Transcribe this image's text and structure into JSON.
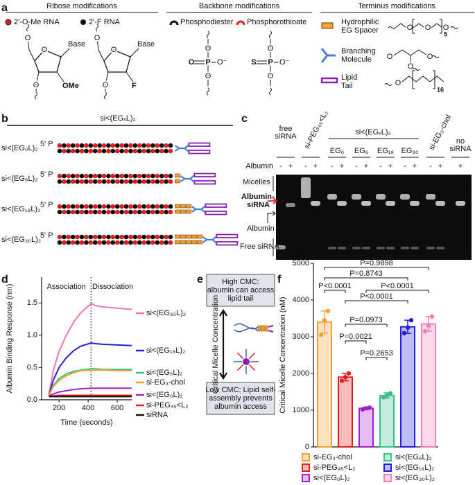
{
  "panel_a": {
    "letter": "a",
    "ribose": {
      "title": "Ribose modifications",
      "legend": [
        "2'-O-Me RNA",
        "2'-F RNA"
      ],
      "base": "Base",
      "ring_oxygen": "O",
      "substituents": [
        "OMe",
        "F"
      ]
    },
    "backbone": {
      "title": "Backbone modifications",
      "legend": [
        "Phosphodiester",
        "Phosphorothioate"
      ],
      "double_bonded": [
        "O",
        "S"
      ],
      "phosphorus": "P",
      "anion": "O⁻",
      "oxygen": "O"
    },
    "terminus": {
      "title": "Terminus modifications",
      "items": [
        [
          "Hydrophilic",
          "EG Spacer"
        ],
        [
          "Branching",
          "Molecule"
        ],
        [
          "Lipid",
          "Tail"
        ]
      ],
      "oxygen": "O",
      "repeats": [
        "5",
        "16"
      ]
    }
  },
  "panel_b": {
    "letter": "b",
    "title": "si<(EGₓL)₂",
    "rows": [
      "si<(EG₀L)₂",
      "si<(EG₆L)₂",
      "si<(EG₁₈L)₂",
      "si<(EG₃₀L)₂"
    ],
    "end": "5' P"
  },
  "panel_c": {
    "letter": "c",
    "lanes": [
      [
        "free",
        "siRNA"
      ],
      [
        "si-PEG₄₅<L₂"
      ],
      [
        "EG₀"
      ],
      [
        "EG₆"
      ],
      [
        "EG₁₈"
      ],
      [
        "EG₃₀"
      ],
      [
        "si-EG₃-chol"
      ],
      [
        "no",
        "siRNA"
      ]
    ],
    "group": "si<(EGₓL)₂",
    "row_label": "Albumin",
    "signs": [
      "-",
      "+",
      "-",
      "+",
      "-",
      "+",
      "-",
      "+",
      "-",
      "+",
      "-",
      "+",
      "-",
      "+",
      "+"
    ],
    "bands": {
      "micelles": "Micelles",
      "complex": [
        "Albumin-",
        "siRNA"
      ],
      "albumin": "Albumin",
      "free": "Free siRNA"
    }
  },
  "panel_e": {
    "letter": "e",
    "high": [
      "High CMC:",
      "albumin can access",
      "lipid tail"
    ],
    "axis": "Critical Micelle Concentration",
    "low": [
      "Low CMC: Lipid self-",
      "assembly prevents",
      "albumin access"
    ]
  },
  "chart_data": [
    {
      "type": "line",
      "panel_label": "d",
      "x_label": "Time (seconds)",
      "y_label": "Albumin Binding Response (nm)",
      "annotations": [
        "Association",
        "Dissociation"
      ],
      "phase_boundary": 420,
      "x": [
        130,
        160,
        200,
        250,
        300,
        350,
        420,
        450,
        500,
        600,
        700
      ],
      "series": [
        {
          "name": "si<(EG₃₀L)₂",
          "color": "#f075b0",
          "values": [
            0.08,
            0.45,
            0.75,
            1.0,
            1.2,
            1.35,
            1.49,
            1.46,
            1.44,
            1.42,
            1.4
          ]
        },
        {
          "name": "si<(EG₁₈L)₂",
          "color": "#2020e0",
          "values": [
            0.07,
            0.3,
            0.5,
            0.65,
            0.76,
            0.83,
            0.88,
            0.87,
            0.86,
            0.85,
            0.84
          ]
        },
        {
          "name": "si<(EG₆L)₂",
          "color": "#3cc08a",
          "values": [
            0.07,
            0.22,
            0.33,
            0.4,
            0.44,
            0.46,
            0.48,
            0.48,
            0.47,
            0.47,
            0.47
          ]
        },
        {
          "name": "si-EG₃-chol",
          "color": "#f5a030",
          "values": [
            0.07,
            0.2,
            0.3,
            0.37,
            0.42,
            0.45,
            0.46,
            0.46,
            0.46,
            0.45,
            0.45
          ]
        },
        {
          "name": "si<(EG₀L)₂",
          "color": "#a020d0",
          "values": [
            0.06,
            0.09,
            0.12,
            0.14,
            0.16,
            0.17,
            0.18,
            0.18,
            0.18,
            0.18,
            0.18
          ]
        },
        {
          "name": "si-PEG₄₅<L₂",
          "color": "#e02020",
          "values": [
            0.06,
            0.06,
            0.07,
            0.07,
            0.07,
            0.07,
            0.07,
            0.07,
            0.07,
            0.07,
            0.07
          ]
        },
        {
          "name": "siRNA",
          "color": "#111111",
          "values": [
            0.05,
            0.05,
            0.05,
            0.05,
            0.05,
            0.05,
            0.05,
            0.05,
            0.05,
            0.05,
            0.05
          ]
        }
      ],
      "xlim": [
        80,
        700
      ],
      "xticks": [
        200,
        400,
        600
      ],
      "ylim": [
        0,
        1.9
      ],
      "yticks": [
        {
          "value": 0,
          "label": "0.0"
        },
        0.5,
        {
          "value": 1,
          "label": "1.0"
        },
        1.5
      ]
    },
    {
      "type": "bar",
      "panel_label": "f",
      "y_label": "Critical Micelle Concentration (nM)",
      "categories": [
        "si-EG₃-chol",
        "si-PEG₄₅<L₂",
        "si<(EG₀L)₂",
        "si<(EG₆L)₂",
        "si<(EG₁₈L)₂",
        "si<(EG₃₀L)₂"
      ],
      "colors": [
        "#f5a030",
        "#e02020",
        "#a020d0",
        "#3cc08a",
        "#2020e0",
        "#f080b8"
      ],
      "values": [
        3400,
        1900,
        1050,
        1400,
        3270,
        3350
      ],
      "errors": [
        300,
        100,
        30,
        70,
        180,
        200
      ],
      "points": [
        [
          3050,
          3450,
          3700
        ],
        [
          1800,
          1900,
          2000
        ],
        [
          1020,
          1050,
          1070
        ],
        [
          1350,
          1400,
          1460
        ],
        [
          3100,
          3250,
          3450
        ],
        [
          3150,
          3300,
          3550
        ]
      ],
      "comparisons": [
        "P=0.9898",
        "P=0.8743",
        "P<0.0001",
        "P<0.0001",
        "P<0.0001",
        "P=0.0973",
        "P=0.0021",
        "P=0.2653"
      ],
      "ylim": [
        0,
        5000
      ],
      "yticks": [
        0,
        1000,
        2000,
        3000,
        4000,
        5000
      ]
    }
  ]
}
